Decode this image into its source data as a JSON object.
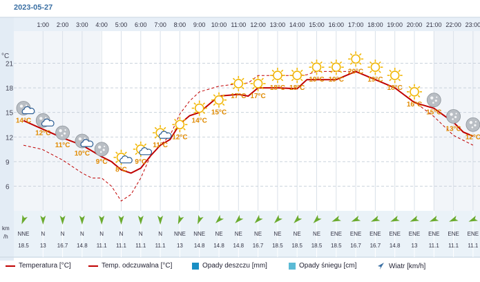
{
  "date": "2023-05-27",
  "y_unit": "°C",
  "wind_unit": [
    "km",
    "/h"
  ],
  "colors": {
    "temp": "#c00000",
    "feels": "#c00000",
    "rain": "#1a8fc4",
    "snow": "#5bbad5",
    "wind": "#3a6fa3"
  },
  "chart_data": {
    "type": "line",
    "hours": [
      "1:00",
      "2:00",
      "3:00",
      "4:00",
      "5:00",
      "6:00",
      "7:00",
      "8:00",
      "9:00",
      "10:00",
      "11:00",
      "12:00",
      "13:00",
      "14:00",
      "15:00",
      "16:00",
      "17:00",
      "18:00",
      "19:00",
      "20:00",
      "21:00",
      "22:00",
      "23:00"
    ],
    "y_ticks": [
      6,
      9,
      12,
      15,
      18,
      21
    ],
    "ylim": [
      3,
      24.5
    ],
    "temp_labels": [
      "14°C",
      "12°C",
      "11°C",
      "10°C",
      "9°C",
      "8°C",
      "9°C",
      "11°C",
      "12°C",
      "14°C",
      "15°C",
      "17°C",
      "17°C",
      "18°C",
      "18°C",
      "19°C",
      "19°C",
      "20°C",
      "19°C",
      "18°C",
      "16°C",
      "15°C",
      "13°C",
      "12°C"
    ],
    "label_values": [
      14,
      12.5,
      11,
      10,
      9,
      8,
      9,
      11,
      12,
      14,
      15,
      17,
      17,
      18,
      18,
      19,
      19,
      20,
      19,
      18,
      16,
      15,
      13,
      12
    ],
    "weather_icons": [
      "moon-cloud-icon",
      "moon-cloud-icon",
      "moon-icon",
      "moon-cloud-icon",
      "moon-icon",
      "sun-cloud-icon",
      "sun-cloud-icon",
      "sun-cloud-icon",
      "sun-icon",
      "sun-icon",
      "sun-icon",
      "sun-icon",
      "sun-icon",
      "sun-icon",
      "sun-icon",
      "sun-icon",
      "sun-icon",
      "sun-icon",
      "sun-icon",
      "sun-icon",
      "sun-icon",
      "moon-icon",
      "moon-icon",
      "moon-icon"
    ],
    "series": [
      {
        "name": "Temperatura [°C]",
        "style": "solid",
        "values": [
          14.0,
          13.0,
          11.9,
          11.0,
          10.3,
          9.6,
          9.0,
          8.0,
          7.6,
          8.2,
          9.7,
          11.0,
          11.7,
          13.6,
          14.6,
          15.0,
          17.0,
          17.2,
          17.0,
          18.0,
          18.0,
          17.9,
          19.0,
          19.0,
          19.0,
          20.0,
          19.0,
          18.0,
          16.2,
          15.5,
          13.8,
          12.6,
          12.1
        ]
      },
      {
        "name": "Temp. odczuwalna [°C]",
        "style": "dashed",
        "values": [
          11.0,
          10.5,
          9.2,
          7.6,
          7.0,
          7.0,
          6.0,
          4.2,
          5.0,
          7.0,
          9.7,
          11.0,
          12.2,
          14.8,
          16.4,
          17.5,
          18.2,
          18.5,
          18.6,
          19.5,
          19.5,
          19.5,
          19.6,
          20.0,
          20.0,
          20.0,
          19.0,
          18.0,
          16.3,
          14.5,
          12.2,
          11.6,
          11.0
        ]
      }
    ],
    "x": [
      0,
      0.95,
      2,
      3,
      3.5,
      4,
      4.5,
      5,
      5.5,
      6,
      6.5,
      7,
      7.5,
      8,
      8.5,
      9,
      10,
      11,
      11.5,
      12,
      13,
      14,
      14.5,
      15,
      16,
      17,
      18,
      19,
      20,
      21,
      22,
      22.5,
      23
    ],
    "wind": {
      "directions": [
        "NNE",
        "N",
        "N",
        "N",
        "N",
        "N",
        "N",
        "N",
        "NNE",
        "NNE",
        "NE",
        "NE",
        "NE",
        "NE",
        "NE",
        "NE",
        "ENE",
        "ENE",
        "ENE",
        "ENE",
        "ENE",
        "ENE",
        "ENE",
        "ENE"
      ],
      "speeds": [
        "18.5",
        "13",
        "16.7",
        "14.8",
        "11.1",
        "11.1",
        "11.1",
        "11.1",
        "13",
        "14.8",
        "14.8",
        "14.8",
        "16.7",
        "18.5",
        "18.5",
        "18.5",
        "18.5",
        "16.7",
        "16.7",
        "14.8",
        "13",
        "11.1",
        "11.1",
        "11.1"
      ]
    }
  },
  "legend": {
    "temp": "Temperatura [°C]",
    "feels": "Temp. odczuwalna [°C]",
    "rain": "Opady deszczu [mm]",
    "snow": "Opady śniegu [cm]",
    "wind": "Wiatr [km/h]"
  }
}
